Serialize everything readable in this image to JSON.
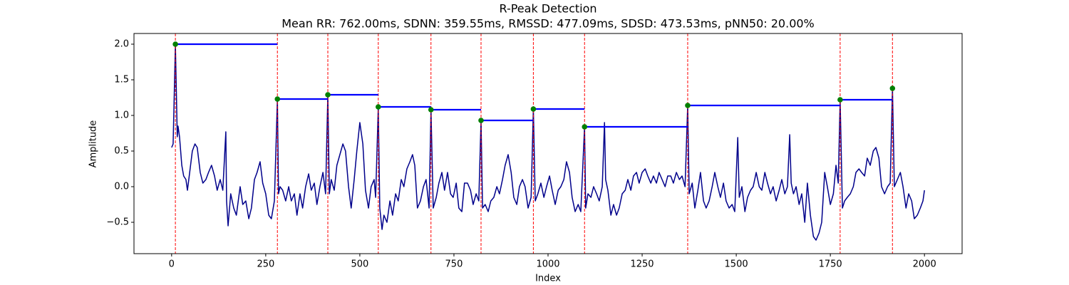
{
  "chart_data": {
    "type": "line",
    "title": "R-Peak Detection",
    "subtitle": "Mean RR: 762.00ms, SDNN: 359.55ms, RMSSD: 477.09ms, SDSD: 473.53ms, pNN50: 20.00%",
    "xlabel": "Index",
    "ylabel": "Amplitude",
    "xlim": [
      -100,
      2100
    ],
    "ylim": [
      -0.94,
      2.15
    ],
    "xticks": [
      0,
      250,
      500,
      750,
      1000,
      1250,
      1500,
      1750,
      2000
    ],
    "yticks": [
      {
        "value": -0.5,
        "label": "−0.5"
      },
      {
        "value": 0,
        "label": "0.0"
      },
      0.5,
      {
        "value": 1,
        "label": "1.0"
      },
      1.5,
      {
        "value": 2,
        "label": "2.0"
      }
    ],
    "series": [
      {
        "color": "#00008b",
        "x": [
          0,
          4,
          10,
          15,
          17,
          21,
          27,
          32,
          38,
          42,
          48,
          55,
          62,
          68,
          76,
          83,
          91,
          98,
          106,
          114,
          121,
          129,
          136,
          144,
          146,
          150,
          157,
          165,
          172,
          182,
          189,
          197,
          205,
          212,
          220,
          227,
          235,
          242,
          250,
          258,
          265,
          273,
          281,
          284,
          288,
          295,
          303,
          311,
          318,
          326,
          333,
          341,
          348,
          356,
          364,
          371,
          379,
          386,
          394,
          402,
          409,
          415,
          419,
          424,
          432,
          439,
          447,
          455,
          462,
          470,
          477,
          485,
          492,
          500,
          508,
          515,
          523,
          530,
          538,
          542,
          549,
          553,
          559,
          564,
          572,
          580,
          587,
          595,
          602,
          610,
          617,
          625,
          633,
          640,
          646,
          653,
          661,
          669,
          676,
          684,
          689,
          695,
          703,
          710,
          718,
          725,
          733,
          741,
          748,
          756,
          763,
          771,
          778,
          786,
          794,
          801,
          809,
          816,
          822,
          826,
          833,
          841,
          848,
          856,
          864,
          871,
          879,
          886,
          894,
          902,
          909,
          917,
          924,
          932,
          939,
          947,
          955,
          961,
          966,
          973,
          981,
          989,
          996,
          1004,
          1011,
          1019,
          1027,
          1034,
          1042,
          1049,
          1057,
          1064,
          1072,
          1080,
          1087,
          1097,
          1100,
          1106,
          1114,
          1121,
          1129,
          1136,
          1144,
          1150,
          1153,
          1159,
          1167,
          1174,
          1182,
          1189,
          1197,
          1205,
          1212,
          1220,
          1227,
          1235,
          1242,
          1250,
          1258,
          1265,
          1273,
          1280,
          1288,
          1295,
          1303,
          1311,
          1318,
          1326,
          1333,
          1341,
          1349,
          1356,
          1364,
          1371,
          1375,
          1383,
          1390,
          1398,
          1405,
          1413,
          1420,
          1428,
          1436,
          1443,
          1451,
          1458,
          1466,
          1473,
          1481,
          1489,
          1496,
          1504,
          1508,
          1515,
          1523,
          1530,
          1538,
          1545,
          1553,
          1561,
          1568,
          1576,
          1583,
          1591,
          1598,
          1606,
          1614,
          1621,
          1629,
          1636,
          1642,
          1646,
          1652,
          1659,
          1667,
          1674,
          1682,
          1689,
          1697,
          1705,
          1712,
          1720,
          1727,
          1735,
          1742,
          1750,
          1758,
          1765,
          1771,
          1776,
          1782,
          1788,
          1795,
          1803,
          1811,
          1818,
          1826,
          1833,
          1841,
          1848,
          1856,
          1864,
          1871,
          1879,
          1886,
          1894,
          1902,
          1909,
          1915,
          1920,
          1928,
          1936,
          1943,
          1951,
          1958,
          1966,
          1973,
          1981,
          1989,
          1996,
          2000
        ],
        "values": [
          0.55,
          0.6,
          2.0,
          0.7,
          0.85,
          0.7,
          0.3,
          0.15,
          0.1,
          -0.05,
          0.2,
          0.5,
          0.6,
          0.55,
          0.2,
          0.05,
          0.1,
          0.2,
          0.3,
          0.15,
          -0.05,
          0.1,
          -0.05,
          0.77,
          -0.2,
          -0.55,
          -0.1,
          -0.3,
          -0.4,
          0.0,
          -0.25,
          -0.2,
          -0.45,
          -0.3,
          0.1,
          0.2,
          0.35,
          0.05,
          -0.1,
          -0.4,
          -0.45,
          -0.2,
          1.23,
          -0.1,
          0.0,
          -0.05,
          -0.2,
          0.0,
          -0.2,
          -0.1,
          -0.4,
          -0.1,
          -0.3,
          0.0,
          0.18,
          -0.05,
          0.05,
          -0.25,
          0.0,
          0.2,
          -0.1,
          1.29,
          -0.1,
          0.1,
          -0.05,
          0.3,
          0.45,
          0.6,
          0.5,
          0.0,
          -0.3,
          0.1,
          0.5,
          0.9,
          0.6,
          -0.05,
          -0.3,
          0.0,
          0.1,
          -0.15,
          1.12,
          -0.3,
          -0.6,
          -0.4,
          -0.5,
          -0.2,
          -0.4,
          -0.1,
          -0.2,
          0.1,
          0.0,
          0.25,
          0.35,
          0.45,
          0.3,
          -0.3,
          -0.2,
          0.0,
          0.1,
          -0.3,
          1.08,
          -0.3,
          -0.15,
          0.05,
          0.2,
          -0.05,
          0.2,
          -0.1,
          -0.15,
          0.05,
          -0.3,
          -0.35,
          0.05,
          0.05,
          -0.05,
          -0.25,
          -0.1,
          -0.2,
          0.93,
          -0.3,
          -0.25,
          -0.35,
          -0.2,
          -0.15,
          0.0,
          -0.1,
          0.1,
          0.3,
          0.45,
          0.2,
          -0.15,
          -0.25,
          0.0,
          0.1,
          0.0,
          -0.3,
          -0.15,
          1.09,
          -0.2,
          -0.1,
          0.05,
          -0.15,
          0.0,
          0.15,
          -0.05,
          -0.25,
          -0.05,
          0.0,
          0.1,
          0.35,
          0.2,
          -0.15,
          -0.35,
          -0.25,
          -0.35,
          0.84,
          -0.3,
          -0.1,
          -0.15,
          0.0,
          -0.1,
          -0.2,
          0.0,
          0.9,
          0.1,
          -0.05,
          -0.4,
          -0.25,
          -0.4,
          -0.3,
          -0.1,
          -0.05,
          0.1,
          -0.05,
          0.15,
          0.2,
          0.05,
          0.2,
          0.25,
          0.15,
          0.05,
          0.15,
          0.05,
          0.2,
          0.1,
          0.0,
          0.15,
          0.15,
          0.05,
          0.2,
          0.1,
          0.15,
          0.0,
          1.14,
          -0.1,
          0.05,
          -0.3,
          -0.05,
          0.2,
          -0.2,
          -0.3,
          -0.2,
          0.0,
          0.2,
          0.0,
          -0.15,
          0.05,
          -0.2,
          -0.3,
          -0.25,
          -0.35,
          0.69,
          -0.15,
          0.0,
          -0.35,
          -0.15,
          -0.05,
          0.0,
          0.2,
          0.0,
          -0.05,
          0.2,
          0.05,
          -0.1,
          0.0,
          -0.2,
          -0.05,
          0.1,
          -0.1,
          0.0,
          0.73,
          0.05,
          -0.1,
          0.0,
          -0.25,
          -0.1,
          -0.5,
          0.05,
          -0.4,
          -0.7,
          -0.75,
          -0.65,
          -0.5,
          0.2,
          0.0,
          -0.25,
          -0.1,
          0.3,
          0.05,
          1.22,
          -0.3,
          -0.2,
          -0.15,
          -0.1,
          0.0,
          0.2,
          0.25,
          0.2,
          0.15,
          0.4,
          0.3,
          0.5,
          0.55,
          0.4,
          0.0,
          -0.1,
          0.0,
          0.05,
          1.38,
          0.0,
          0.1,
          0.2,
          0.0,
          -0.3,
          -0.1,
          -0.2,
          -0.45,
          -0.4,
          -0.3,
          -0.2,
          -0.05
        ]
      }
    ],
    "peaks": {
      "color": "#008000",
      "line_color": "#ff0000",
      "interval_color": "#0000ff",
      "x": [
        10,
        281,
        415,
        549,
        689,
        822,
        961,
        1097,
        1371,
        1776,
        1915
      ],
      "values": [
        2.0,
        1.23,
        1.29,
        1.12,
        1.08,
        0.93,
        1.09,
        0.84,
        1.14,
        1.22,
        1.38
      ]
    }
  }
}
